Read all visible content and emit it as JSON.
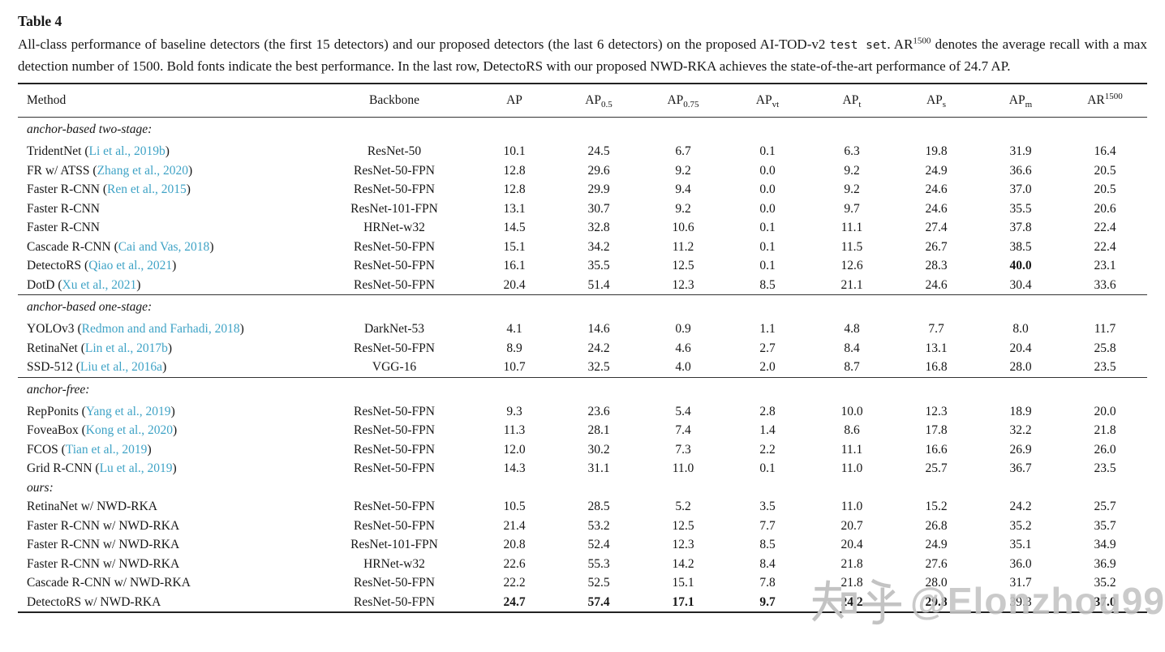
{
  "caption": {
    "title": "Table 4",
    "pre": "All-class performance of baseline detectors (the first 15 detectors) and our proposed detectors (the last 6 detectors) on the proposed AI-TOD-v2 ",
    "mono": "test set",
    "mid": ". AR",
    "sup": "1500",
    "rest": " denotes the average recall with a max detection number of 1500. Bold fonts indicate the best performance. In the last row, DetectoRS with our proposed NWD-RKA achieves the state-of-the-art performance of 24.7 AP."
  },
  "table": {
    "headers": [
      {
        "text": "Method",
        "align": "left"
      },
      {
        "text": "Backbone"
      },
      {
        "text": "AP"
      },
      {
        "text": "AP",
        "sub": "0.5"
      },
      {
        "text": "AP",
        "sub": "0.75"
      },
      {
        "text": "AP",
        "sub": "vt"
      },
      {
        "text": "AP",
        "sub": "t"
      },
      {
        "text": "AP",
        "sub": "s"
      },
      {
        "text": "AP",
        "sub": "m"
      },
      {
        "text": "AR",
        "sup": "1500"
      }
    ],
    "groups": [
      {
        "label": "anchor-based two-stage:",
        "separator": false,
        "rows": [
          {
            "method": "TridentNet",
            "cite": "Li et al., 2019b",
            "backbone": "ResNet-50",
            "values": [
              "10.1",
              "24.5",
              "6.7",
              "0.1",
              "6.3",
              "19.8",
              "31.9",
              "16.4"
            ],
            "bold": []
          },
          {
            "method": "FR w/ ATSS",
            "cite": "Zhang et al., 2020",
            "backbone": "ResNet-50-FPN",
            "values": [
              "12.8",
              "29.6",
              "9.2",
              "0.0",
              "9.2",
              "24.9",
              "36.6",
              "20.5"
            ],
            "bold": []
          },
          {
            "method": "Faster R-CNN",
            "cite": "Ren et al., 2015",
            "backbone": "ResNet-50-FPN",
            "values": [
              "12.8",
              "29.9",
              "9.4",
              "0.0",
              "9.2",
              "24.6",
              "37.0",
              "20.5"
            ],
            "bold": []
          },
          {
            "method": "Faster R-CNN",
            "cite": null,
            "backbone": "ResNet-101-FPN",
            "values": [
              "13.1",
              "30.7",
              "9.2",
              "0.0",
              "9.7",
              "24.6",
              "35.5",
              "20.6"
            ],
            "bold": []
          },
          {
            "method": "Faster R-CNN",
            "cite": null,
            "backbone": "HRNet-w32",
            "values": [
              "14.5",
              "32.8",
              "10.6",
              "0.1",
              "11.1",
              "27.4",
              "37.8",
              "22.4"
            ],
            "bold": []
          },
          {
            "method": "Cascade R-CNN",
            "cite": "Cai and Vas, 2018",
            "backbone": "ResNet-50-FPN",
            "values": [
              "15.1",
              "34.2",
              "11.2",
              "0.1",
              "11.5",
              "26.7",
              "38.5",
              "22.4"
            ],
            "bold": []
          },
          {
            "method": "DetectoRS",
            "cite": "Qiao et al., 2021",
            "backbone": "ResNet-50-FPN",
            "values": [
              "16.1",
              "35.5",
              "12.5",
              "0.1",
              "12.6",
              "28.3",
              "40.0",
              "23.1"
            ],
            "bold": [
              6
            ]
          },
          {
            "method": "DotD",
            "cite": "Xu et al., 2021",
            "backbone": "ResNet-50-FPN",
            "values": [
              "20.4",
              "51.4",
              "12.3",
              "8.5",
              "21.1",
              "24.6",
              "30.4",
              "33.6"
            ],
            "bold": []
          }
        ]
      },
      {
        "label": "anchor-based one-stage:",
        "separator": true,
        "rows": [
          {
            "method": "YOLOv3",
            "cite": "Redmon and and Farhadi, 2018",
            "backbone": "DarkNet-53",
            "values": [
              "4.1",
              "14.6",
              "0.9",
              "1.1",
              "4.8",
              "7.7",
              "8.0",
              "11.7"
            ],
            "bold": []
          },
          {
            "method": "RetinaNet",
            "cite": "Lin et al., 2017b",
            "backbone": "ResNet-50-FPN",
            "values": [
              "8.9",
              "24.2",
              "4.6",
              "2.7",
              "8.4",
              "13.1",
              "20.4",
              "25.8"
            ],
            "bold": []
          },
          {
            "method": "SSD-512",
            "cite": "Liu et al., 2016a",
            "backbone": "VGG-16",
            "values": [
              "10.7",
              "32.5",
              "4.0",
              "2.0",
              "8.7",
              "16.8",
              "28.0",
              "23.5"
            ],
            "bold": []
          }
        ]
      },
      {
        "label": "anchor-free:",
        "separator": true,
        "rows": [
          {
            "method": "RepPonits",
            "cite": "Yang et al., 2019",
            "backbone": "ResNet-50-FPN",
            "values": [
              "9.3",
              "23.6",
              "5.4",
              "2.8",
              "10.0",
              "12.3",
              "18.9",
              "20.0"
            ],
            "bold": []
          },
          {
            "method": "FoveaBox",
            "cite": "Kong et al., 2020",
            "backbone": "ResNet-50-FPN",
            "values": [
              "11.3",
              "28.1",
              "7.4",
              "1.4",
              "8.6",
              "17.8",
              "32.2",
              "21.8"
            ],
            "bold": []
          },
          {
            "method": "FCOS",
            "cite": "Tian et al., 2019",
            "backbone": "ResNet-50-FPN",
            "values": [
              "12.0",
              "30.2",
              "7.3",
              "2.2",
              "11.1",
              "16.6",
              "26.9",
              "26.0"
            ],
            "bold": []
          },
          {
            "method": "Grid R-CNN",
            "cite": "Lu et al., 2019",
            "backbone": "ResNet-50-FPN",
            "values": [
              "14.3",
              "31.1",
              "11.0",
              "0.1",
              "11.0",
              "25.7",
              "36.7",
              "23.5"
            ],
            "bold": []
          }
        ]
      },
      {
        "label": "ours:",
        "separator": false,
        "tight": true,
        "rows": [
          {
            "method": "RetinaNet w/ NWD-RKA",
            "cite": null,
            "backbone": "ResNet-50-FPN",
            "values": [
              "10.5",
              "28.5",
              "5.2",
              "3.5",
              "11.0",
              "15.2",
              "24.2",
              "25.7"
            ],
            "bold": []
          },
          {
            "method": "Faster R-CNN w/ NWD-RKA",
            "cite": null,
            "backbone": "ResNet-50-FPN",
            "values": [
              "21.4",
              "53.2",
              "12.5",
              "7.7",
              "20.7",
              "26.8",
              "35.2",
              "35.7"
            ],
            "bold": []
          },
          {
            "method": "Faster R-CNN w/ NWD-RKA",
            "cite": null,
            "backbone": "ResNet-101-FPN",
            "values": [
              "20.8",
              "52.4",
              "12.3",
              "8.5",
              "20.4",
              "24.9",
              "35.1",
              "34.9"
            ],
            "bold": []
          },
          {
            "method": "Faster R-CNN w/ NWD-RKA",
            "cite": null,
            "backbone": "HRNet-w32",
            "values": [
              "22.6",
              "55.3",
              "14.2",
              "8.4",
              "21.8",
              "27.6",
              "36.0",
              "36.9"
            ],
            "bold": []
          },
          {
            "method": "Cascade R-CNN w/ NWD-RKA",
            "cite": null,
            "backbone": "ResNet-50-FPN",
            "values": [
              "22.2",
              "52.5",
              "15.1",
              "7.8",
              "21.8",
              "28.0",
              "31.7",
              "35.2"
            ],
            "bold": []
          },
          {
            "method": "DetectoRS w/ NWD-RKA",
            "cite": null,
            "backbone": "ResNet-50-FPN",
            "values": [
              "24.7",
              "57.4",
              "17.1",
              "9.7",
              "24.2",
              "29.8",
              "39.3",
              "37.0"
            ],
            "bold": [
              0,
              1,
              2,
              3,
              4,
              5,
              7
            ]
          }
        ]
      }
    ]
  },
  "colors": {
    "citation_link": "#3fa3c6",
    "rule": "#222222",
    "watermark": "#c3c3c3"
  },
  "watermark": {
    "text": "知乎 @Elonzhou99",
    "handle": "@Elonzhou99"
  }
}
